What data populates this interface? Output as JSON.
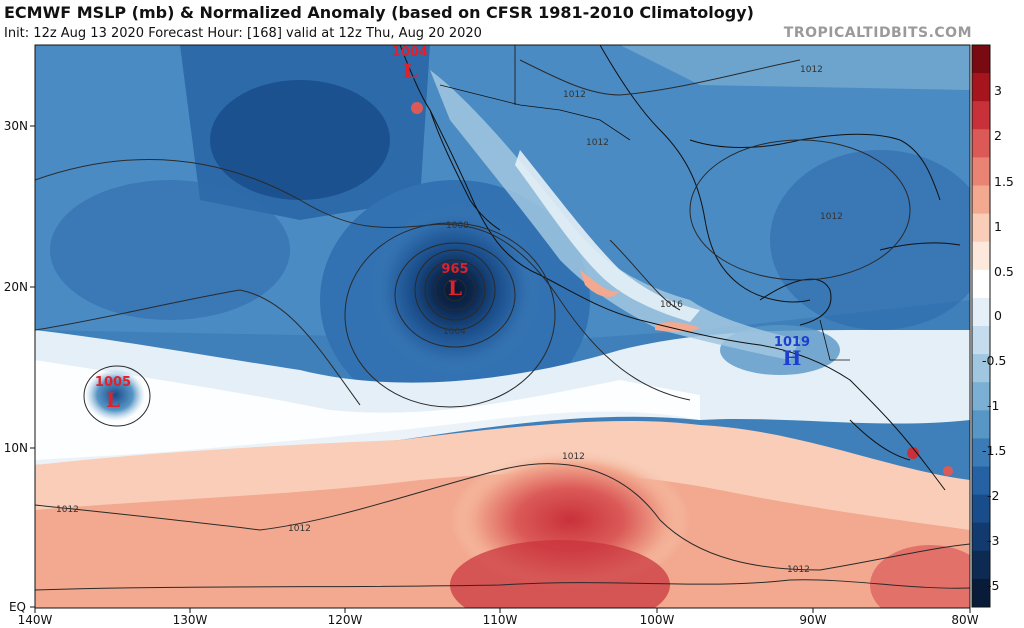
{
  "header": {
    "title": "ECMWF MSLP (mb) & Normalized Anomaly (based on CFSR 1981-2010 Climatology)",
    "subtitle": "Init: 12z Aug 13 2020   Forecast Hour: [168]   valid at 12z Thu, Aug 20 2020",
    "brand": "TROPICALTIDBITS.COM"
  },
  "map": {
    "lon_ticks": [
      "140W",
      "130W",
      "120W",
      "110W",
      "100W",
      "90W",
      "80W"
    ],
    "lat_ticks": [
      "30N",
      "20N",
      "10N",
      "EQ"
    ],
    "colorbar": {
      "labels": [
        "3",
        "2",
        "1.5",
        "1",
        "0.5",
        "0",
        "-0.5",
        "-1",
        "-1.5",
        "-2",
        "-3",
        "-5"
      ],
      "colors": [
        "#7a0a12",
        "#a6151e",
        "#c9313a",
        "#db5a58",
        "#e98374",
        "#f2a98f",
        "#f9cdb8",
        "#fde8dc",
        "#ffffff",
        "#e4eff7",
        "#c4dced",
        "#a1c7e0",
        "#7bafd3",
        "#5896c6",
        "#3b7bb7",
        "#2661a3",
        "#194c8a",
        "#123a6f",
        "#0d2a52",
        "#081b38"
      ]
    },
    "systems": [
      {
        "name": "hurricane-low",
        "value": "965",
        "letter": "L",
        "color": "#e0202a"
      },
      {
        "name": "baja-low",
        "value": "1004",
        "letter": "L",
        "color": "#e0202a"
      },
      {
        "name": "west-low",
        "value": "1005",
        "letter": "L",
        "color": "#e0202a"
      },
      {
        "name": "central-america-high",
        "value": "1019",
        "letter": "H",
        "color": "#1d3fd0"
      }
    ],
    "isobar_labels": [
      "1012",
      "1012",
      "1012",
      "1008",
      "1004",
      "1012",
      "1012",
      "1012",
      "1012",
      "1016",
      "1012"
    ]
  }
}
